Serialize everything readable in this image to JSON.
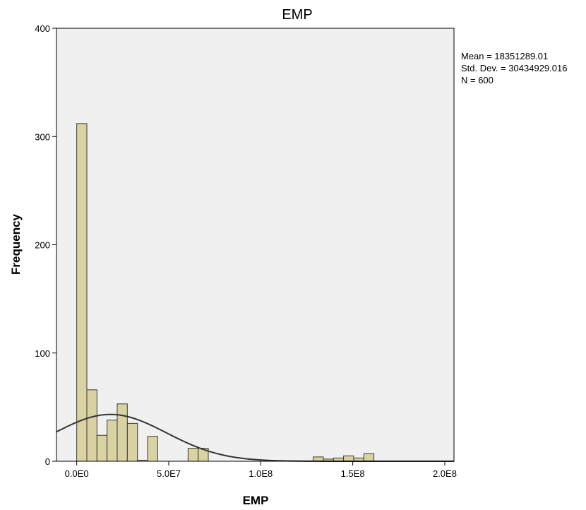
{
  "chart_data": {
    "type": "bar",
    "title": "EMP",
    "xlabel": "EMP",
    "ylabel": "Frequency",
    "xlim": [
      -11000000,
      205000000
    ],
    "ylim": [
      0,
      400
    ],
    "x_ticks": [
      {
        "value": 0,
        "label": "0.0E0"
      },
      {
        "value": 50000000,
        "label": "5.0E7"
      },
      {
        "value": 100000000,
        "label": "1.0E8"
      },
      {
        "value": 150000000,
        "label": "1.5E8"
      },
      {
        "value": 200000000,
        "label": "2.0E8"
      }
    ],
    "y_ticks": [
      {
        "value": 0,
        "label": "0"
      },
      {
        "value": 100,
        "label": "100"
      },
      {
        "value": 200,
        "label": "200"
      },
      {
        "value": 300,
        "label": "300"
      },
      {
        "value": 400,
        "label": "400"
      }
    ],
    "bin_width": 5500000,
    "bins": [
      {
        "start": 0,
        "count": 312
      },
      {
        "start": 5500000,
        "count": 66
      },
      {
        "start": 11000000,
        "count": 24
      },
      {
        "start": 16500000,
        "count": 38
      },
      {
        "start": 22000000,
        "count": 53
      },
      {
        "start": 27500000,
        "count": 35
      },
      {
        "start": 33000000,
        "count": 1
      },
      {
        "start": 38500000,
        "count": 23
      },
      {
        "start": 60500000,
        "count": 12
      },
      {
        "start": 66000000,
        "count": 12
      },
      {
        "start": 128500000,
        "count": 4
      },
      {
        "start": 134000000,
        "count": 2
      },
      {
        "start": 139500000,
        "count": 3
      },
      {
        "start": 145000000,
        "count": 5
      },
      {
        "start": 150500000,
        "count": 3
      },
      {
        "start": 156000000,
        "count": 7
      }
    ],
    "normal_curve": {
      "mean": 18351289.01,
      "std_dev": 30434929.016,
      "n": 600
    },
    "stats_text": [
      "Mean = 18351289.01",
      "Std. Dev. = 30434929.016",
      "N = 600"
    ],
    "grid": false,
    "legend": "none",
    "colors": {
      "plot_background": "#f0f0f0",
      "bar_fill": "#d9d2a3",
      "bar_stroke": "#3a3a2a",
      "curve": "#333333",
      "axis": "#000000"
    }
  }
}
